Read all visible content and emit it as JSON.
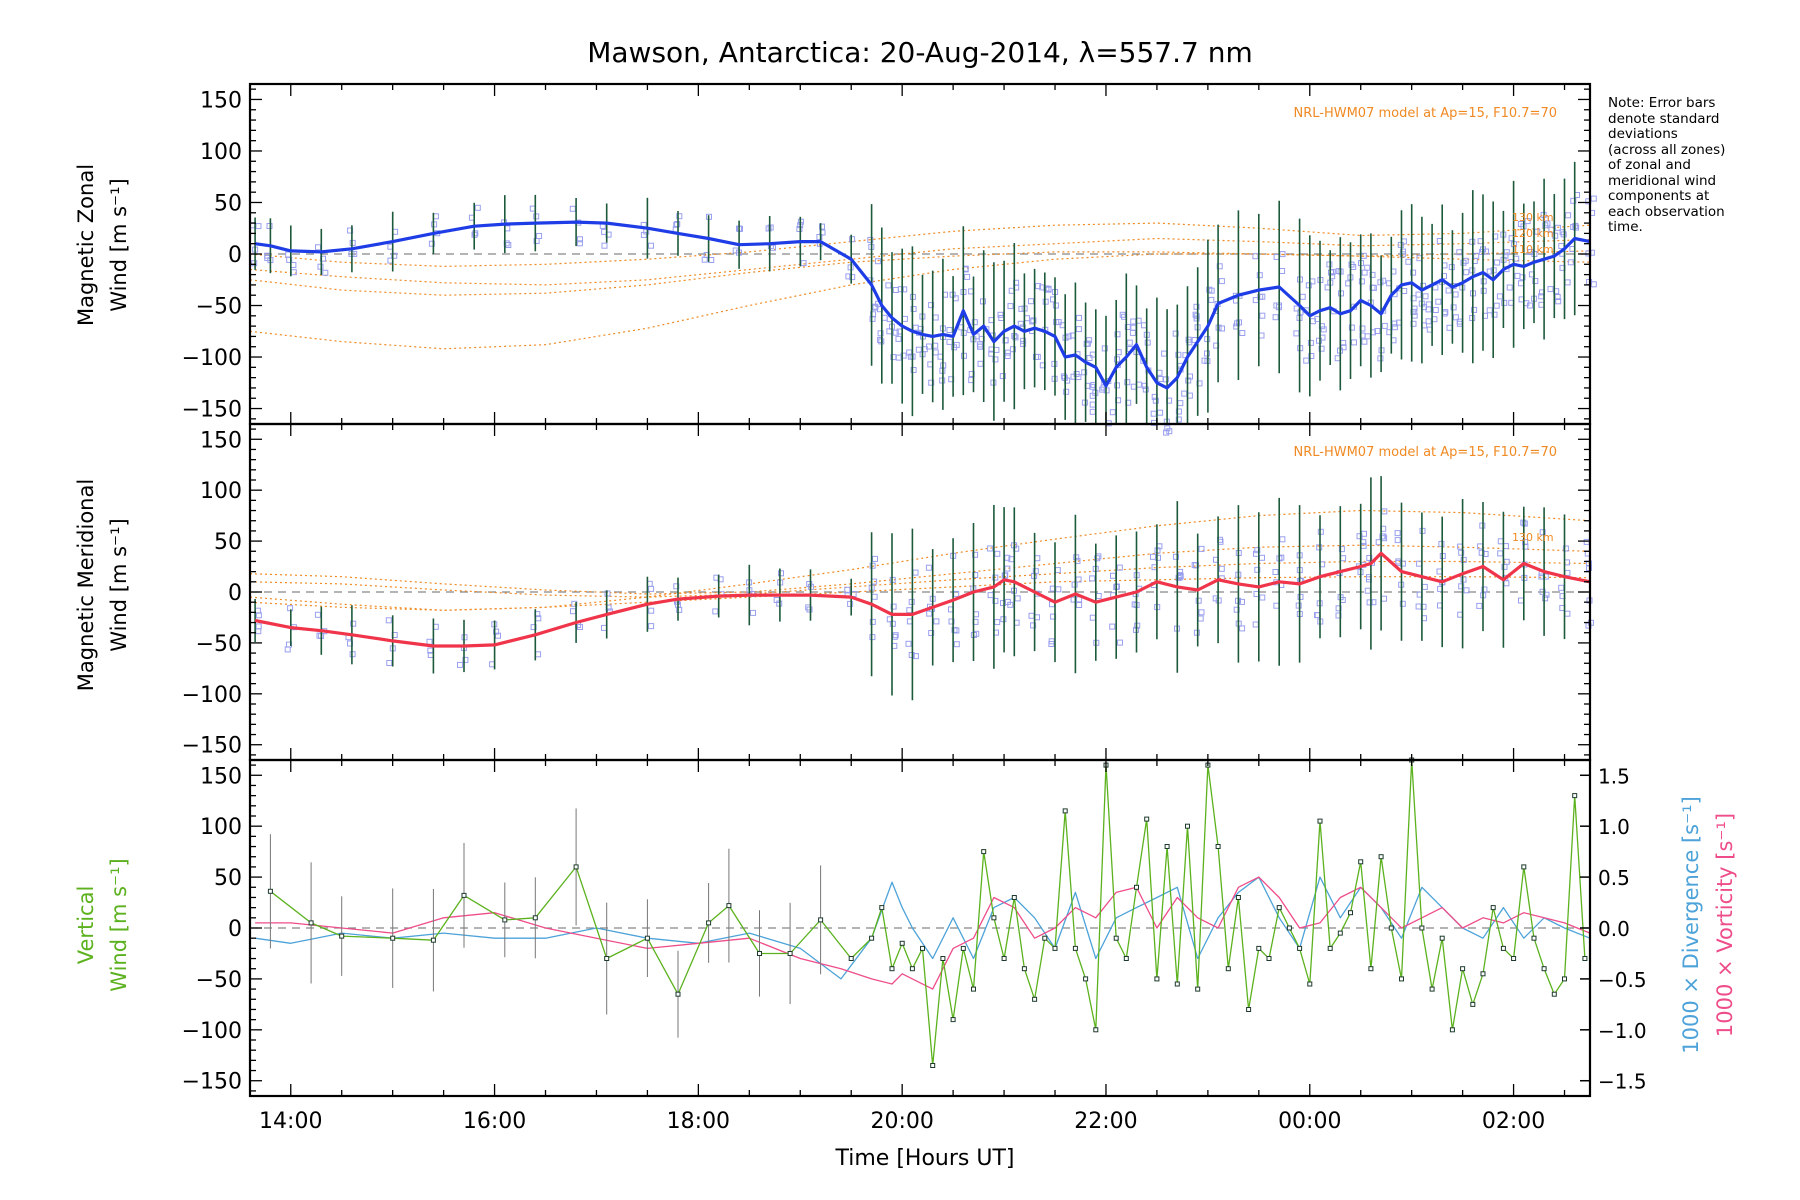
{
  "colors": {
    "zonal": "#1f3de6",
    "meridional": "#f0344a",
    "vertical": "#5cb21e",
    "divergence": "#4da3d9",
    "vorticity": "#ee4d8a",
    "model": "#f08a24",
    "scatter": "#9aa0ee",
    "errorbar": "#1d5a3c"
  },
  "chart_data": [
    {
      "panel": "zonal",
      "type": "line",
      "title": "Mawson, Antarctica: 20-Aug-2014, λ=557.7 nm",
      "ylabel_line1": "Magnetic Zonal",
      "ylabel_line2": "Wind [m s⁻¹]",
      "ylim": [
        -165,
        165
      ],
      "yticks": [
        -150,
        -100,
        -50,
        0,
        50,
        100,
        150
      ],
      "xlim": [
        13.6,
        26.75
      ],
      "model_label": "NRL-HWM07 model at Ap=15, F10.7=70",
      "model_heights": [
        "130 km",
        "120 km",
        "110 km"
      ],
      "series": [
        {
          "kind": "mean",
          "x": [
            13.65,
            13.8,
            14.0,
            14.3,
            14.6,
            15.0,
            15.4,
            15.8,
            16.1,
            16.4,
            16.8,
            17.1,
            17.5,
            17.8,
            18.1,
            18.4,
            18.7,
            19.0,
            19.2,
            19.5,
            19.7,
            19.8,
            19.9,
            20.0,
            20.1,
            20.2,
            20.3,
            20.4,
            20.5,
            20.6,
            20.7,
            20.8,
            20.9,
            21.0,
            21.1,
            21.2,
            21.3,
            21.4,
            21.5,
            21.6,
            21.7,
            21.8,
            21.9,
            22.0,
            22.1,
            22.2,
            22.3,
            22.4,
            22.5,
            22.6,
            22.7,
            22.8,
            22.9,
            23.0,
            23.1,
            23.3,
            23.5,
            23.7,
            23.9,
            24.0,
            24.1,
            24.2,
            24.3,
            24.4,
            24.5,
            24.6,
            24.7,
            24.8,
            24.9,
            25.0,
            25.1,
            25.2,
            25.3,
            25.4,
            25.5,
            25.6,
            25.7,
            25.8,
            25.9,
            26.0,
            26.1,
            26.2,
            26.3,
            26.4,
            26.5,
            26.6,
            26.75
          ],
          "values": [
            10,
            8,
            3,
            2,
            5,
            12,
            20,
            27,
            29,
            30,
            31,
            30,
            25,
            20,
            15,
            9,
            10,
            12,
            12,
            -5,
            -30,
            -50,
            -62,
            -70,
            -75,
            -78,
            -80,
            -78,
            -80,
            -55,
            -78,
            -70,
            -85,
            -75,
            -70,
            -75,
            -72,
            -75,
            -80,
            -100,
            -98,
            -105,
            -110,
            -128,
            -110,
            -100,
            -88,
            -110,
            -125,
            -130,
            -120,
            -100,
            -85,
            -70,
            -48,
            -40,
            -35,
            -32,
            -50,
            -60,
            -55,
            -52,
            -58,
            -55,
            -45,
            -50,
            -58,
            -40,
            -30,
            -28,
            -35,
            -30,
            -25,
            -32,
            -28,
            -22,
            -18,
            -25,
            -15,
            -10,
            -12,
            -8,
            -5,
            -2,
            5,
            15,
            12
          ]
        },
        {
          "kind": "model",
          "name": "130 km",
          "x": [
            13.6,
            14.5,
            15.5,
            16.5,
            17.5,
            18.5,
            19.5,
            20.5,
            21.5,
            22.5,
            23.5,
            24.5,
            25.5,
            26.75
          ],
          "values": [
            0,
            -8,
            -12,
            -10,
            -5,
            2,
            12,
            22,
            28,
            30,
            25,
            18,
            20,
            28
          ]
        },
        {
          "kind": "model",
          "name": "120 km",
          "x": [
            13.6,
            14.5,
            15.5,
            16.5,
            17.5,
            18.5,
            19.5,
            20.5,
            21.5,
            22.5,
            23.5,
            24.5,
            25.5,
            26.75
          ],
          "values": [
            -15,
            -22,
            -28,
            -30,
            -25,
            -15,
            -5,
            5,
            10,
            15,
            12,
            8,
            10,
            14
          ]
        },
        {
          "kind": "model",
          "name": "110 km",
          "x": [
            13.6,
            14.5,
            15.5,
            16.5,
            17.5,
            18.5,
            19.5,
            20.5,
            21.5,
            22.5,
            23.5,
            24.5,
            25.5,
            26.75
          ],
          "values": [
            -75,
            -85,
            -92,
            -88,
            -72,
            -50,
            -30,
            -15,
            -5,
            0,
            0,
            -2,
            0,
            3
          ]
        },
        {
          "kind": "model",
          "name": "",
          "x": [
            13.6,
            14.5,
            15.5,
            16.5,
            17.5,
            18.5,
            19.5,
            20.5,
            21.5,
            22.5,
            23.5,
            24.5,
            25.5,
            26.75
          ],
          "values": [
            -25,
            -35,
            -40,
            -38,
            -30,
            -18,
            -8,
            -2,
            2,
            2,
            0,
            -2,
            -5,
            -8
          ]
        }
      ]
    },
    {
      "panel": "meridional",
      "type": "line",
      "ylabel_line1": "Magnetic Meridional",
      "ylabel_line2": "Wind [m s⁻¹]",
      "ylim": [
        -165,
        165
      ],
      "yticks": [
        -150,
        -100,
        -50,
        0,
        50,
        100,
        150
      ],
      "xlim": [
        13.6,
        26.75
      ],
      "model_label": "NRL-HWM07 model at Ap=15, F10.7=70",
      "model_heights": [
        "130 km"
      ],
      "series": [
        {
          "kind": "mean",
          "x": [
            13.65,
            14.0,
            14.3,
            14.6,
            15.0,
            15.4,
            15.7,
            16.0,
            16.4,
            16.8,
            17.1,
            17.5,
            17.8,
            18.2,
            18.5,
            18.8,
            19.1,
            19.5,
            19.7,
            19.9,
            20.1,
            20.3,
            20.5,
            20.7,
            20.9,
            21.0,
            21.1,
            21.3,
            21.5,
            21.7,
            21.9,
            22.1,
            22.3,
            22.5,
            22.7,
            22.9,
            23.1,
            23.3,
            23.5,
            23.7,
            23.9,
            24.1,
            24.3,
            24.5,
            24.6,
            24.7,
            24.9,
            25.1,
            25.3,
            25.5,
            25.7,
            25.9,
            26.1,
            26.3,
            26.5,
            26.75
          ],
          "values": [
            -28,
            -35,
            -38,
            -42,
            -48,
            -53,
            -53,
            -52,
            -42,
            -30,
            -22,
            -12,
            -7,
            -4,
            -3,
            -3,
            -3,
            -5,
            -12,
            -22,
            -22,
            -15,
            -8,
            0,
            5,
            12,
            10,
            0,
            -10,
            -2,
            -10,
            -5,
            0,
            10,
            5,
            2,
            12,
            8,
            5,
            10,
            8,
            15,
            20,
            25,
            28,
            38,
            20,
            15,
            10,
            18,
            25,
            12,
            28,
            20,
            15,
            10
          ]
        },
        {
          "kind": "model",
          "name": "130 km",
          "x": [
            13.6,
            14.5,
            15.5,
            16.5,
            17.5,
            18.5,
            19.5,
            20.5,
            21.5,
            22.5,
            23.5,
            24.5,
            25.5,
            26.75
          ],
          "values": [
            -5,
            -12,
            -18,
            -15,
            -5,
            8,
            22,
            38,
            52,
            65,
            75,
            80,
            78,
            70
          ]
        },
        {
          "kind": "model",
          "name": "",
          "x": [
            13.6,
            14.5,
            15.5,
            16.5,
            17.5,
            18.5,
            19.5,
            20.5,
            21.5,
            22.5,
            23.5,
            24.5,
            25.5,
            26.75
          ],
          "values": [
            18,
            15,
            8,
            2,
            -2,
            0,
            8,
            18,
            28,
            38,
            44,
            46,
            44,
            40
          ]
        },
        {
          "kind": "model",
          "name": "",
          "x": [
            13.6,
            14.5,
            15.5,
            16.5,
            17.5,
            18.5,
            19.5,
            20.5,
            21.5,
            22.5,
            23.5,
            24.5,
            25.5,
            26.75
          ],
          "values": [
            10,
            8,
            2,
            -3,
            -5,
            -2,
            5,
            12,
            18,
            24,
            28,
            30,
            30,
            28
          ]
        },
        {
          "kind": "model",
          "name": "",
          "x": [
            13.6,
            14.5,
            15.5,
            16.5,
            17.5,
            18.5,
            19.5,
            20.5,
            21.5,
            22.5,
            23.5,
            24.5,
            25.5,
            26.75
          ],
          "values": [
            -10,
            -15,
            -18,
            -15,
            -10,
            -5,
            0,
            5,
            10,
            12,
            14,
            15,
            15,
            14
          ]
        }
      ]
    },
    {
      "panel": "vertical",
      "type": "line",
      "xlabel": "Time [Hours UT]",
      "xticks": [
        "14:00",
        "16:00",
        "18:00",
        "20:00",
        "22:00",
        "00:00",
        "02:00"
      ],
      "xtick_values": [
        14,
        16,
        18,
        20,
        22,
        24,
        26
      ],
      "xlim": [
        13.6,
        26.75
      ],
      "ylabel_line1": "Vertical",
      "ylabel_line2": "Wind [m s⁻¹]",
      "ylim": [
        -165,
        165
      ],
      "yticks": [
        -150,
        -100,
        -50,
        0,
        50,
        100,
        150
      ],
      "y2label_div": "1000 × Divergence [s⁻¹]",
      "y2label_vort": "1000 × Vorticity [s⁻¹]",
      "y2lim": [
        -1.65,
        1.65
      ],
      "y2ticks": [
        -1.5,
        -1.0,
        -0.5,
        0.0,
        0.5,
        1.0,
        1.5
      ],
      "y2ticklabels": [
        "−1.5",
        "−1.0",
        "−0.5",
        "0.0",
        "0.5",
        "1.0",
        "1.5"
      ],
      "series": [
        {
          "kind": "vertical",
          "name": "Vertical Wind",
          "x": [
            13.8,
            14.2,
            14.5,
            15.0,
            15.4,
            15.7,
            16.1,
            16.4,
            16.8,
            17.1,
            17.5,
            17.8,
            18.1,
            18.3,
            18.6,
            18.9,
            19.2,
            19.5,
            19.7,
            19.8,
            19.9,
            20.0,
            20.1,
            20.2,
            20.3,
            20.4,
            20.5,
            20.6,
            20.7,
            20.8,
            20.9,
            21.0,
            21.1,
            21.2,
            21.3,
            21.4,
            21.5,
            21.6,
            21.7,
            21.8,
            21.9,
            22.0,
            22.1,
            22.2,
            22.3,
            22.4,
            22.5,
            22.6,
            22.7,
            22.8,
            22.9,
            23.0,
            23.1,
            23.2,
            23.3,
            23.4,
            23.5,
            23.6,
            23.7,
            23.8,
            23.9,
            24.0,
            24.1,
            24.2,
            24.3,
            24.4,
            24.5,
            24.6,
            24.7,
            24.8,
            24.9,
            25.0,
            25.1,
            25.2,
            25.3,
            25.4,
            25.5,
            25.6,
            25.7,
            25.8,
            25.9,
            26.0,
            26.1,
            26.2,
            26.3,
            26.4,
            26.5,
            26.6,
            26.7
          ],
          "values": [
            36,
            5,
            -8,
            -10,
            -12,
            32,
            8,
            10,
            60,
            -30,
            -10,
            -65,
            5,
            22,
            -25,
            -25,
            8,
            -30,
            -10,
            20,
            -40,
            -15,
            -40,
            -20,
            -135,
            -30,
            -90,
            -20,
            -60,
            75,
            10,
            -30,
            30,
            -40,
            -70,
            -10,
            -20,
            115,
            -20,
            -50,
            -100,
            160,
            -10,
            -30,
            40,
            107,
            -50,
            80,
            -55,
            100,
            -60,
            160,
            80,
            -40,
            30,
            -80,
            -20,
            -30,
            20,
            0,
            -20,
            -55,
            105,
            -20,
            -5,
            15,
            65,
            -40,
            70,
            0,
            -50,
            165,
            0,
            -60,
            -10,
            -100,
            -40,
            -75,
            -45,
            20,
            -20,
            -30,
            60,
            -10,
            -40,
            -65,
            -50,
            130,
            -30
          ]
        },
        {
          "kind": "divergence",
          "name": "1000 × Divergence",
          "x": [
            13.65,
            14.0,
            14.5,
            15.0,
            15.5,
            16.0,
            16.5,
            17.0,
            17.5,
            18.0,
            18.5,
            19.0,
            19.4,
            19.7,
            19.9,
            20.0,
            20.1,
            20.3,
            20.5,
            20.7,
            20.9,
            21.1,
            21.3,
            21.5,
            21.7,
            21.9,
            22.1,
            22.3,
            22.5,
            22.7,
            22.9,
            23.1,
            23.3,
            23.5,
            23.7,
            23.9,
            24.1,
            24.3,
            24.5,
            24.7,
            24.9,
            25.1,
            25.3,
            25.5,
            25.7,
            25.9,
            26.1,
            26.3,
            26.5,
            26.75
          ],
          "values": [
            -0.1,
            -0.15,
            -0.05,
            -0.1,
            -0.05,
            -0.1,
            -0.1,
            0.0,
            -0.1,
            -0.15,
            -0.05,
            -0.2,
            -0.5,
            -0.1,
            0.45,
            0.2,
            0.0,
            -0.3,
            0.1,
            -0.3,
            0.2,
            0.3,
            0.1,
            -0.2,
            0.35,
            -0.3,
            0.1,
            0.2,
            0.3,
            0.4,
            -0.3,
            0.1,
            0.35,
            0.5,
            0.1,
            -0.2,
            0.5,
            0.1,
            0.4,
            0.2,
            -0.1,
            0.4,
            0.2,
            0.0,
            -0.1,
            0.2,
            -0.1,
            0.1,
            0.0,
            -0.1
          ]
        },
        {
          "kind": "vorticity",
          "name": "1000 × Vorticity",
          "x": [
            13.65,
            14.0,
            14.5,
            15.0,
            15.5,
            16.0,
            16.5,
            17.0,
            17.5,
            18.0,
            18.5,
            19.0,
            19.4,
            19.7,
            19.9,
            20.0,
            20.1,
            20.3,
            20.5,
            20.7,
            20.9,
            21.1,
            21.3,
            21.5,
            21.7,
            21.9,
            22.1,
            22.3,
            22.5,
            22.7,
            22.9,
            23.1,
            23.3,
            23.5,
            23.7,
            23.9,
            24.1,
            24.3,
            24.5,
            24.7,
            24.9,
            25.1,
            25.3,
            25.5,
            25.7,
            25.9,
            26.1,
            26.3,
            26.5,
            26.75
          ],
          "values": [
            0.05,
            0.05,
            0.0,
            -0.05,
            0.1,
            0.15,
            0.0,
            -0.1,
            -0.2,
            -0.15,
            -0.1,
            -0.3,
            -0.4,
            -0.5,
            -0.55,
            -0.45,
            -0.5,
            -0.6,
            -0.2,
            -0.1,
            0.3,
            0.2,
            -0.1,
            0.0,
            0.2,
            0.1,
            0.35,
            0.4,
            0.0,
            0.3,
            0.1,
            0.0,
            0.4,
            0.5,
            0.3,
            0.0,
            0.05,
            0.3,
            0.4,
            0.2,
            0.0,
            0.1,
            0.2,
            0.0,
            0.1,
            0.05,
            0.15,
            0.1,
            0.05,
            -0.05
          ]
        }
      ]
    }
  ],
  "note": {
    "lines": [
      "Note: Error bars",
      "denote standard",
      "deviations",
      "(across all zones)",
      "of zonal and",
      "meridional wind",
      "components at",
      "each observation",
      "time."
    ]
  }
}
